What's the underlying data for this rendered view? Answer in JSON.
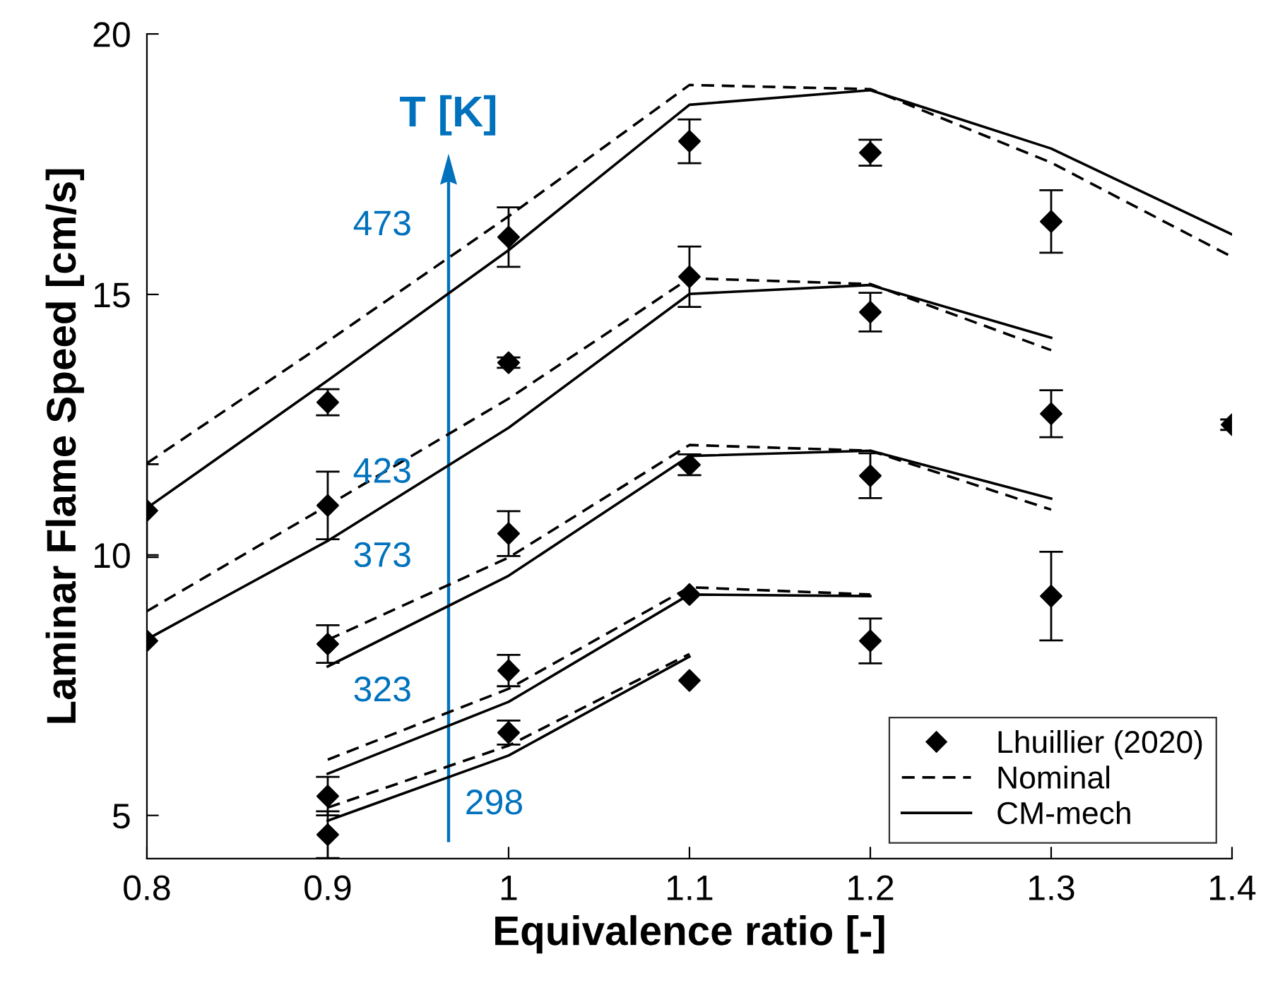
{
  "chart_data": {
    "type": "line",
    "xlabel": "Equivalence ratio [-]",
    "ylabel": "Laminar Flame Speed [cm/s]",
    "xlim": [
      0.8,
      1.4
    ],
    "ylim": [
      4.17,
      20
    ],
    "xticks": [
      0.8,
      0.9,
      1,
      1.1,
      1.2,
      1.3,
      1.4
    ],
    "yticks": [
      5,
      10,
      15,
      20
    ],
    "grid": false,
    "legend": "bottom right",
    "series": [
      {
        "name": "Lhuillier (2020)",
        "type": "scatter",
        "marker": "diamond",
        "color": "#000000",
        "x": [
          0.8,
          0.8,
          0.9,
          0.9,
          0.9,
          0.9,
          0.9,
          1,
          1,
          1,
          1,
          1,
          1.1,
          1.1,
          1.1,
          1.1,
          1.1,
          1.2,
          1.2,
          1.2,
          1.2,
          1.3,
          1.3,
          1.3,
          1.4
        ],
        "values": [
          10.85,
          8.35,
          12.93,
          10.95,
          8.29,
          5.37,
          4.63,
          16.1,
          13.69,
          10.41,
          7.78,
          6.59,
          17.94,
          15.34,
          11.73,
          9.24,
          7.59,
          17.72,
          14.66,
          11.52,
          8.35,
          16.4,
          12.71,
          9.21,
          12.5
        ],
        "errors": [
          0.89,
          null,
          0.25,
          0.65,
          0.36,
          0.37,
          0.45,
          0.57,
          0.1,
          0.43,
          0.3,
          0.23,
          0.42,
          0.58,
          0.2,
          null,
          null,
          0.25,
          0.37,
          0.43,
          0.43,
          0.6,
          0.45,
          0.85,
          0.1
        ]
      },
      {
        "name": "Nominal",
        "line_style": "dashed",
        "color": "#000000",
        "x": [
          0.8,
          0.9,
          1,
          1.1,
          1.2,
          1.3,
          1.4
        ],
        "values": [
          11.76,
          14.1,
          16.5,
          19.02,
          18.94,
          17.53,
          15.72
        ]
      },
      {
        "name": "CM-mech",
        "line_style": "solid",
        "color": "#000000",
        "x": [
          0.8,
          0.9,
          1,
          1.1,
          1.2,
          1.3,
          1.4
        ],
        "values": [
          10.9,
          13.35,
          15.85,
          18.64,
          18.92,
          17.8,
          16.15
        ]
      },
      {
        "line_style": "dashed",
        "color": "#000000",
        "x": [
          0.8,
          0.9,
          1,
          1.1,
          1.2,
          1.3
        ],
        "values": [
          8.92,
          10.95,
          13.0,
          15.31,
          15.2,
          13.93
        ]
      },
      {
        "line_style": "solid",
        "color": "#000000",
        "x": [
          0.8,
          0.9,
          1,
          1.1,
          1.2,
          1.3
        ],
        "values": [
          8.38,
          10.27,
          12.44,
          15.01,
          15.18,
          14.17
        ]
      },
      {
        "line_style": "dashed",
        "color": "#000000",
        "x": [
          0.9,
          1,
          1.1,
          1.2,
          1.3
        ],
        "values": [
          8.37,
          9.95,
          12.11,
          12.0,
          10.87
        ]
      },
      {
        "line_style": "solid",
        "color": "#000000",
        "x": [
          0.9,
          1,
          1.1,
          1.2,
          1.3
        ],
        "values": [
          7.86,
          9.6,
          11.9,
          12.0,
          11.08
        ]
      },
      {
        "line_style": "dashed",
        "color": "#000000",
        "x": [
          0.9,
          1,
          1.1,
          1.2
        ],
        "values": [
          6.07,
          7.43,
          9.38,
          9.24
        ]
      },
      {
        "line_style": "solid",
        "color": "#000000",
        "x": [
          0.9,
          1,
          1.1,
          1.2
        ],
        "values": [
          5.8,
          7.18,
          9.24,
          9.21
        ]
      },
      {
        "line_style": "dashed",
        "color": "#000000",
        "x": [
          0.9,
          1,
          1.1
        ],
        "values": [
          5.15,
          6.34,
          8.1
        ]
      },
      {
        "line_style": "solid",
        "color": "#000000",
        "x": [
          0.9,
          1,
          1.1
        ],
        "values": [
          4.9,
          6.15,
          8.05
        ]
      }
    ],
    "annotations": [
      "T [K]",
      "473",
      "423",
      "373",
      "323",
      "298"
    ]
  }
}
